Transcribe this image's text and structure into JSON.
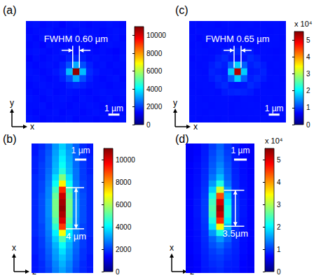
{
  "chart_data": [
    {
      "type": "heatmap",
      "title": "(a)",
      "tick_labels": false,
      "xlabel": "x",
      "ylabel": "y",
      "xlim": [
        -4.5,
        4.5
      ],
      "ylim": [
        -4.5,
        4.5
      ],
      "x": [
        -4.2,
        -3.6,
        -3.0,
        -2.4,
        -1.8,
        -1.2,
        -0.6,
        0,
        0.6,
        1.2,
        1.8,
        2.4,
        3.0,
        3.6,
        4.2
      ],
      "y": [
        4.2,
        3.6,
        3.0,
        2.4,
        1.8,
        1.2,
        0.6,
        0,
        -0.6,
        -1.2,
        -1.8,
        -2.4,
        -3.0,
        -3.6,
        -4.2
      ],
      "cells": [
        [
          1500,
          1550,
          1450,
          1500,
          1500,
          1400,
          1500,
          1550,
          1500,
          1450,
          1500,
          1500,
          1550,
          1500,
          1450
        ],
        [
          1450,
          1500,
          1500,
          1550,
          1450,
          1500,
          1500,
          1450,
          1550,
          1500,
          1500,
          1450,
          1500,
          1550,
          1500
        ],
        [
          1500,
          1450,
          1550,
          1500,
          1400,
          1500,
          1600,
          1500,
          1450,
          1550,
          1500,
          1400,
          1500,
          1550,
          1450
        ],
        [
          1450,
          1500,
          1400,
          1550,
          1500,
          1450,
          1500,
          1550,
          1500,
          1450,
          1400,
          1500,
          1550,
          1500,
          1500
        ],
        [
          1500,
          1550,
          1500,
          1450,
          1500,
          1600,
          1550,
          1500,
          1600,
          1500,
          1450,
          1500,
          1450,
          1400,
          1500
        ],
        [
          1400,
          1500,
          1450,
          1500,
          1550,
          1500,
          1700,
          1800,
          1700,
          1500,
          1550,
          1500,
          1500,
          1450,
          1550
        ],
        [
          1500,
          1450,
          1500,
          1550,
          1500,
          1700,
          2200,
          3200,
          2200,
          1700,
          1500,
          1550,
          1450,
          1500,
          1500
        ],
        [
          1550,
          1500,
          1450,
          1500,
          1600,
          1800,
          3400,
          10800,
          3400,
          1800,
          1600,
          1500,
          1500,
          1450,
          1500
        ],
        [
          1500,
          1550,
          1500,
          1450,
          1500,
          1700,
          2200,
          3200,
          2200,
          1700,
          1500,
          1450,
          1500,
          1550,
          1450
        ],
        [
          1450,
          1500,
          1550,
          1500,
          1500,
          1500,
          1700,
          1800,
          1700,
          1550,
          1500,
          1500,
          1450,
          1500,
          1500
        ],
        [
          1500,
          1450,
          1500,
          1550,
          1450,
          1500,
          1550,
          1500,
          1500,
          1450,
          1500,
          1550,
          1500,
          1500,
          1550
        ],
        [
          1550,
          1500,
          1450,
          1500,
          1500,
          1550,
          1500,
          1450,
          1550,
          1500,
          1450,
          1500,
          1550,
          1450,
          1500
        ],
        [
          1500,
          1500,
          1550,
          1450,
          1500,
          1500,
          1450,
          1500,
          1500,
          1550,
          1500,
          1450,
          1500,
          1500,
          1450
        ],
        [
          1500,
          1450,
          1500,
          1500,
          1550,
          1450,
          1500,
          1500,
          1450,
          1500,
          1550,
          1500,
          1450,
          1500,
          1500
        ],
        [
          1550,
          1500,
          1450,
          1500,
          1500,
          1500,
          1550,
          1450,
          1500,
          1500,
          1450,
          1500,
          1500,
          1450,
          1550
        ]
      ],
      "colorbar": {
        "range": [
          0,
          11000
        ],
        "ticks": [
          0,
          2000,
          4000,
          6000,
          8000,
          10000
        ]
      },
      "annotation": {
        "text": "FWHM 0.60 µm",
        "width": 0.6
      },
      "scale_bar": {
        "length": 1,
        "label": "1 µm"
      }
    },
    {
      "type": "heatmap",
      "title": "(b)",
      "tick_labels": false,
      "xlabel": "z",
      "ylabel": "x",
      "xlim": [
        -2.7,
        2.7
      ],
      "ylim": [
        -6.3,
        6.3
      ],
      "x": [
        -2.4,
        -1.8,
        -1.2,
        -0.6,
        0,
        0.6,
        1.2,
        1.8,
        2.4
      ],
      "y": [
        6.0,
        5.4,
        4.8,
        4.2,
        3.6,
        3.0,
        2.4,
        1.8,
        1.2,
        0.6,
        0,
        -0.6,
        -1.2,
        -1.8,
        -2.4,
        -3.0,
        -3.6,
        -4.2,
        -4.8,
        -5.4,
        -6.0
      ],
      "cells": [
        [
          1600,
          1800,
          2200,
          3000,
          3600,
          3000,
          2400,
          1800,
          1600
        ],
        [
          1600,
          1900,
          2300,
          3100,
          3800,
          3100,
          2400,
          1900,
          1600
        ],
        [
          1700,
          1900,
          2400,
          3200,
          4000,
          3200,
          2500,
          1900,
          1700
        ],
        [
          1700,
          2000,
          2400,
          3300,
          4200,
          3300,
          2500,
          2000,
          1700
        ],
        [
          1700,
          2000,
          2500,
          3400,
          4500,
          3400,
          2600,
          2000,
          1700
        ],
        [
          1800,
          2000,
          2600,
          3800,
          5500,
          3800,
          2600,
          2000,
          1800
        ],
        [
          1800,
          2100,
          2700,
          4200,
          7000,
          4200,
          2700,
          2100,
          1800
        ],
        [
          1800,
          2100,
          2800,
          4800,
          9200,
          4800,
          2800,
          2100,
          1800
        ],
        [
          1800,
          2200,
          2800,
          5200,
          10200,
          5200,
          2800,
          2200,
          1800
        ],
        [
          1800,
          2200,
          2900,
          5400,
          10600,
          5400,
          2900,
          2200,
          1800
        ],
        [
          1800,
          2200,
          2900,
          5400,
          10800,
          5400,
          2900,
          2200,
          1800
        ],
        [
          1800,
          2200,
          2900,
          5300,
          10500,
          5300,
          2900,
          2200,
          1800
        ],
        [
          1800,
          2200,
          2800,
          5000,
          10000,
          5000,
          2800,
          2200,
          1800
        ],
        [
          1800,
          2100,
          2800,
          4600,
          9000,
          4600,
          2800,
          2100,
          1800
        ],
        [
          1800,
          2100,
          2700,
          4000,
          6800,
          4000,
          2700,
          2100,
          1800
        ],
        [
          1700,
          2000,
          2600,
          3600,
          5000,
          3600,
          2600,
          2000,
          1700
        ],
        [
          1700,
          2000,
          2500,
          3300,
          4200,
          3300,
          2500,
          2000,
          1700
        ],
        [
          1700,
          1900,
          2400,
          3100,
          3800,
          3100,
          2400,
          1900,
          1700
        ],
        [
          1600,
          1900,
          2300,
          3000,
          3500,
          3000,
          2300,
          1900,
          1600
        ],
        [
          1600,
          1800,
          2200,
          2800,
          3300,
          2800,
          2200,
          1800,
          1600
        ],
        [
          1600,
          1800,
          2100,
          2700,
          3100,
          2700,
          2100,
          1800,
          1600
        ]
      ],
      "colorbar": {
        "range": [
          0,
          11000
        ],
        "ticks": [
          0,
          2000,
          4000,
          6000,
          8000,
          10000
        ]
      },
      "annotation": {
        "text": "4 µm",
        "length": 4
      },
      "scale_bar": {
        "length": 1,
        "label": "1 µm"
      }
    },
    {
      "type": "heatmap",
      "title": "(c)",
      "tick_labels": false,
      "xlabel": "x",
      "ylabel": "y",
      "xlim": [
        -4.5,
        4.5
      ],
      "ylim": [
        -4.5,
        4.5
      ],
      "x": [
        -4.2,
        -3.6,
        -3.0,
        -2.4,
        -1.8,
        -1.2,
        -0.6,
        0,
        0.6,
        1.2,
        1.8,
        2.4,
        3.0,
        3.6,
        4.2
      ],
      "y": [
        4.2,
        3.6,
        3.0,
        2.4,
        1.8,
        1.2,
        0.6,
        0,
        -0.6,
        -1.2,
        -1.8,
        -2.4,
        -3.0,
        -3.6,
        -4.2
      ],
      "cells": [
        [
          7500,
          7400,
          7600,
          7500,
          7300,
          7500,
          7600,
          7400,
          7500,
          7600,
          7400,
          7500,
          7500,
          7600,
          7400
        ],
        [
          7400,
          7600,
          7500,
          7500,
          7600,
          7400,
          7500,
          7500,
          7600,
          7400,
          7500,
          7600,
          7400,
          7500,
          7500
        ],
        [
          7500,
          7200,
          7600,
          7400,
          7300,
          7500,
          7700,
          7500,
          7400,
          7600,
          7500,
          7300,
          7500,
          7600,
          7400
        ],
        [
          7400,
          7500,
          7300,
          7600,
          7500,
          7400,
          7600,
          7700,
          7500,
          7400,
          7300,
          7500,
          7600,
          7500,
          7500
        ],
        [
          7500,
          7600,
          7500,
          7400,
          7600,
          8200,
          8600,
          8800,
          8600,
          8200,
          7400,
          7500,
          7400,
          7300,
          7500
        ],
        [
          7300,
          7500,
          7400,
          7600,
          8400,
          9000,
          8000,
          7800,
          8000,
          9000,
          8400,
          7500,
          7500,
          7400,
          7600
        ],
        [
          7500,
          7400,
          7500,
          8200,
          9000,
          8400,
          12000,
          18000,
          12000,
          8400,
          9000,
          8200,
          7400,
          7500,
          7500
        ],
        [
          7600,
          7500,
          7400,
          8600,
          8200,
          8000,
          18000,
          52000,
          18000,
          8000,
          8200,
          8600,
          7500,
          7400,
          7500
        ],
        [
          7500,
          7600,
          7500,
          8200,
          9000,
          8400,
          12000,
          18000,
          12000,
          8400,
          9000,
          8200,
          7500,
          7600,
          7400
        ],
        [
          7400,
          7500,
          7600,
          7500,
          8400,
          9000,
          8000,
          7800,
          8000,
          9000,
          8400,
          7500,
          7400,
          7500,
          7500
        ],
        [
          7500,
          7400,
          7500,
          7600,
          7400,
          8200,
          8600,
          8800,
          8600,
          8200,
          7500,
          7600,
          7500,
          7500,
          7600
        ],
        [
          7600,
          7500,
          7400,
          7500,
          7500,
          7600,
          7500,
          7400,
          7600,
          7500,
          7400,
          7500,
          7600,
          7400,
          7500
        ],
        [
          7500,
          7500,
          7600,
          7400,
          7500,
          7500,
          7400,
          7500,
          7500,
          7600,
          7500,
          7400,
          7500,
          7500,
          7400
        ],
        [
          7500,
          7500,
          7400,
          7600,
          7500,
          7500,
          7400,
          7600,
          7500,
          7500,
          7600,
          7400,
          7500,
          7400,
          7600
        ],
        [
          7600,
          7400,
          7500,
          7500,
          7400,
          7600,
          7500,
          7500,
          7400,
          7500,
          7500,
          7600,
          7500,
          7500,
          7400
        ]
      ],
      "colorbar": {
        "range": [
          0,
          55000
        ],
        "ticks": [
          0,
          {
            "value": 10000,
            "label": "1"
          },
          {
            "value": 20000,
            "label": "2"
          },
          {
            "value": 30000,
            "label": "3"
          },
          {
            "value": 40000,
            "label": "4"
          },
          {
            "value": 50000,
            "label": "5"
          }
        ]
      },
      "colorbar_label": "x 10⁴",
      "annotation": {
        "text": "FWHM 0.65 µm",
        "width": 0.65
      },
      "scale_bar": {
        "length": 1,
        "label": "1 µm"
      }
    },
    {
      "type": "heatmap",
      "title": "(d)",
      "tick_labels": false,
      "xlabel": "z",
      "ylabel": "x",
      "xlim": [
        -2.7,
        2.7
      ],
      "ylim": [
        -6.3,
        6.3
      ],
      "x": [
        -2.4,
        -1.8,
        -1.2,
        -0.6,
        0,
        0.6,
        1.2,
        1.8,
        2.4
      ],
      "y": [
        6.0,
        5.4,
        4.8,
        4.2,
        3.6,
        3.0,
        2.4,
        1.8,
        1.2,
        0.6,
        0,
        -0.6,
        -1.2,
        -1.8,
        -2.4,
        -3.0,
        -3.6,
        -4.2,
        -4.8,
        -5.4,
        -6.0
      ],
      "cells": [
        [
          6500,
          7000,
          8000,
          10000,
          12000,
          9500,
          8000,
          7000,
          6500
        ],
        [
          6500,
          7000,
          8200,
          10500,
          12500,
          10000,
          8000,
          7000,
          6500
        ],
        [
          6500,
          7200,
          8400,
          11000,
          13000,
          10500,
          8200,
          7200,
          6500
        ],
        [
          6800,
          7400,
          8600,
          11500,
          14000,
          11000,
          8400,
          7400,
          6800
        ],
        [
          6800,
          7400,
          8800,
          12000,
          15000,
          11500,
          8600,
          7400,
          6800
        ],
        [
          7000,
          7600,
          9000,
          13000,
          17000,
          12000,
          8800,
          7600,
          7000
        ],
        [
          7000,
          7600,
          9200,
          15000,
          22000,
          13000,
          9000,
          7600,
          7000
        ],
        [
          7000,
          7800,
          9500,
          18000,
          32000,
          15000,
          9200,
          7800,
          7000
        ],
        [
          7000,
          7800,
          9800,
          22000,
          44000,
          18000,
          9500,
          7800,
          7000
        ],
        [
          7000,
          8000,
          10000,
          24000,
          50000,
          20000,
          9800,
          8000,
          7000
        ],
        [
          7000,
          8000,
          10000,
          25000,
          53000,
          22000,
          10000,
          8000,
          7000
        ],
        [
          7000,
          8000,
          10000,
          24000,
          51000,
          22000,
          10000,
          8000,
          7000
        ],
        [
          7000,
          7800,
          9800,
          22000,
          46000,
          20000,
          9800,
          7800,
          7000
        ],
        [
          7000,
          7800,
          9500,
          19000,
          34000,
          17000,
          9500,
          7800,
          7000
        ],
        [
          7000,
          7600,
          9200,
          15000,
          22000,
          14000,
          9200,
          7600,
          7000
        ],
        [
          7000,
          7600,
          9000,
          12000,
          15000,
          12000,
          9000,
          7600,
          7000
        ],
        [
          6800,
          7400,
          8800,
          11000,
          12500,
          10500,
          8800,
          7400,
          6800
        ],
        [
          6800,
          7400,
          8600,
          10000,
          11000,
          9500,
          8600,
          7400,
          6800
        ],
        [
          6500,
          7200,
          8400,
          9500,
          10000,
          9000,
          8400,
          7200,
          6500
        ],
        [
          6500,
          7000,
          8200,
          9000,
          9500,
          8500,
          8200,
          7000,
          6500
        ],
        [
          6500,
          7000,
          8000,
          8500,
          9000,
          8200,
          8000,
          7000,
          6500
        ]
      ],
      "colorbar": {
        "range": [
          0,
          55000
        ],
        "ticks": [
          0,
          {
            "value": 10000,
            "label": "1"
          },
          {
            "value": 20000,
            "label": "2"
          },
          {
            "value": 30000,
            "label": "3"
          },
          {
            "value": 40000,
            "label": "4"
          },
          {
            "value": 50000,
            "label": "5"
          }
        ]
      },
      "colorbar_label": "x 10⁴",
      "annotation": {
        "text": "3.5µm",
        "length": 3.5
      },
      "scale_bar": {
        "length": 1,
        "label": "1 µm"
      }
    }
  ]
}
